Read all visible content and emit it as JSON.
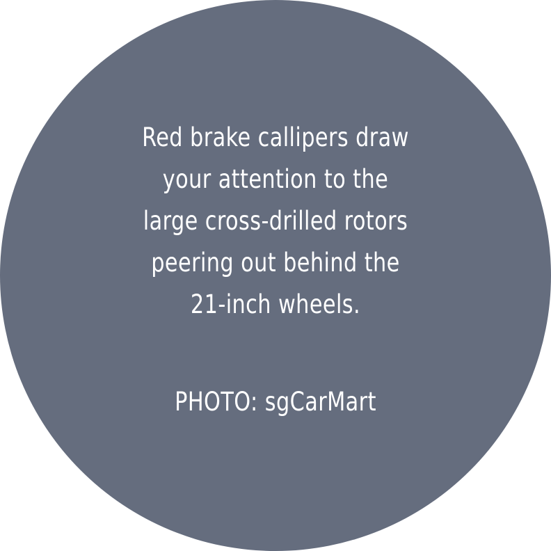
{
  "caption": {
    "lines": [
      "Red brake callipers draw",
      "your attention to the",
      "large cross-drilled rotors",
      "peering out behind the",
      "21-inch wheels."
    ]
  },
  "credit": "PHOTO: sgCarMart",
  "colors": {
    "circle": "#656d7e",
    "text": "#ffffff",
    "background": "#ffffff"
  }
}
